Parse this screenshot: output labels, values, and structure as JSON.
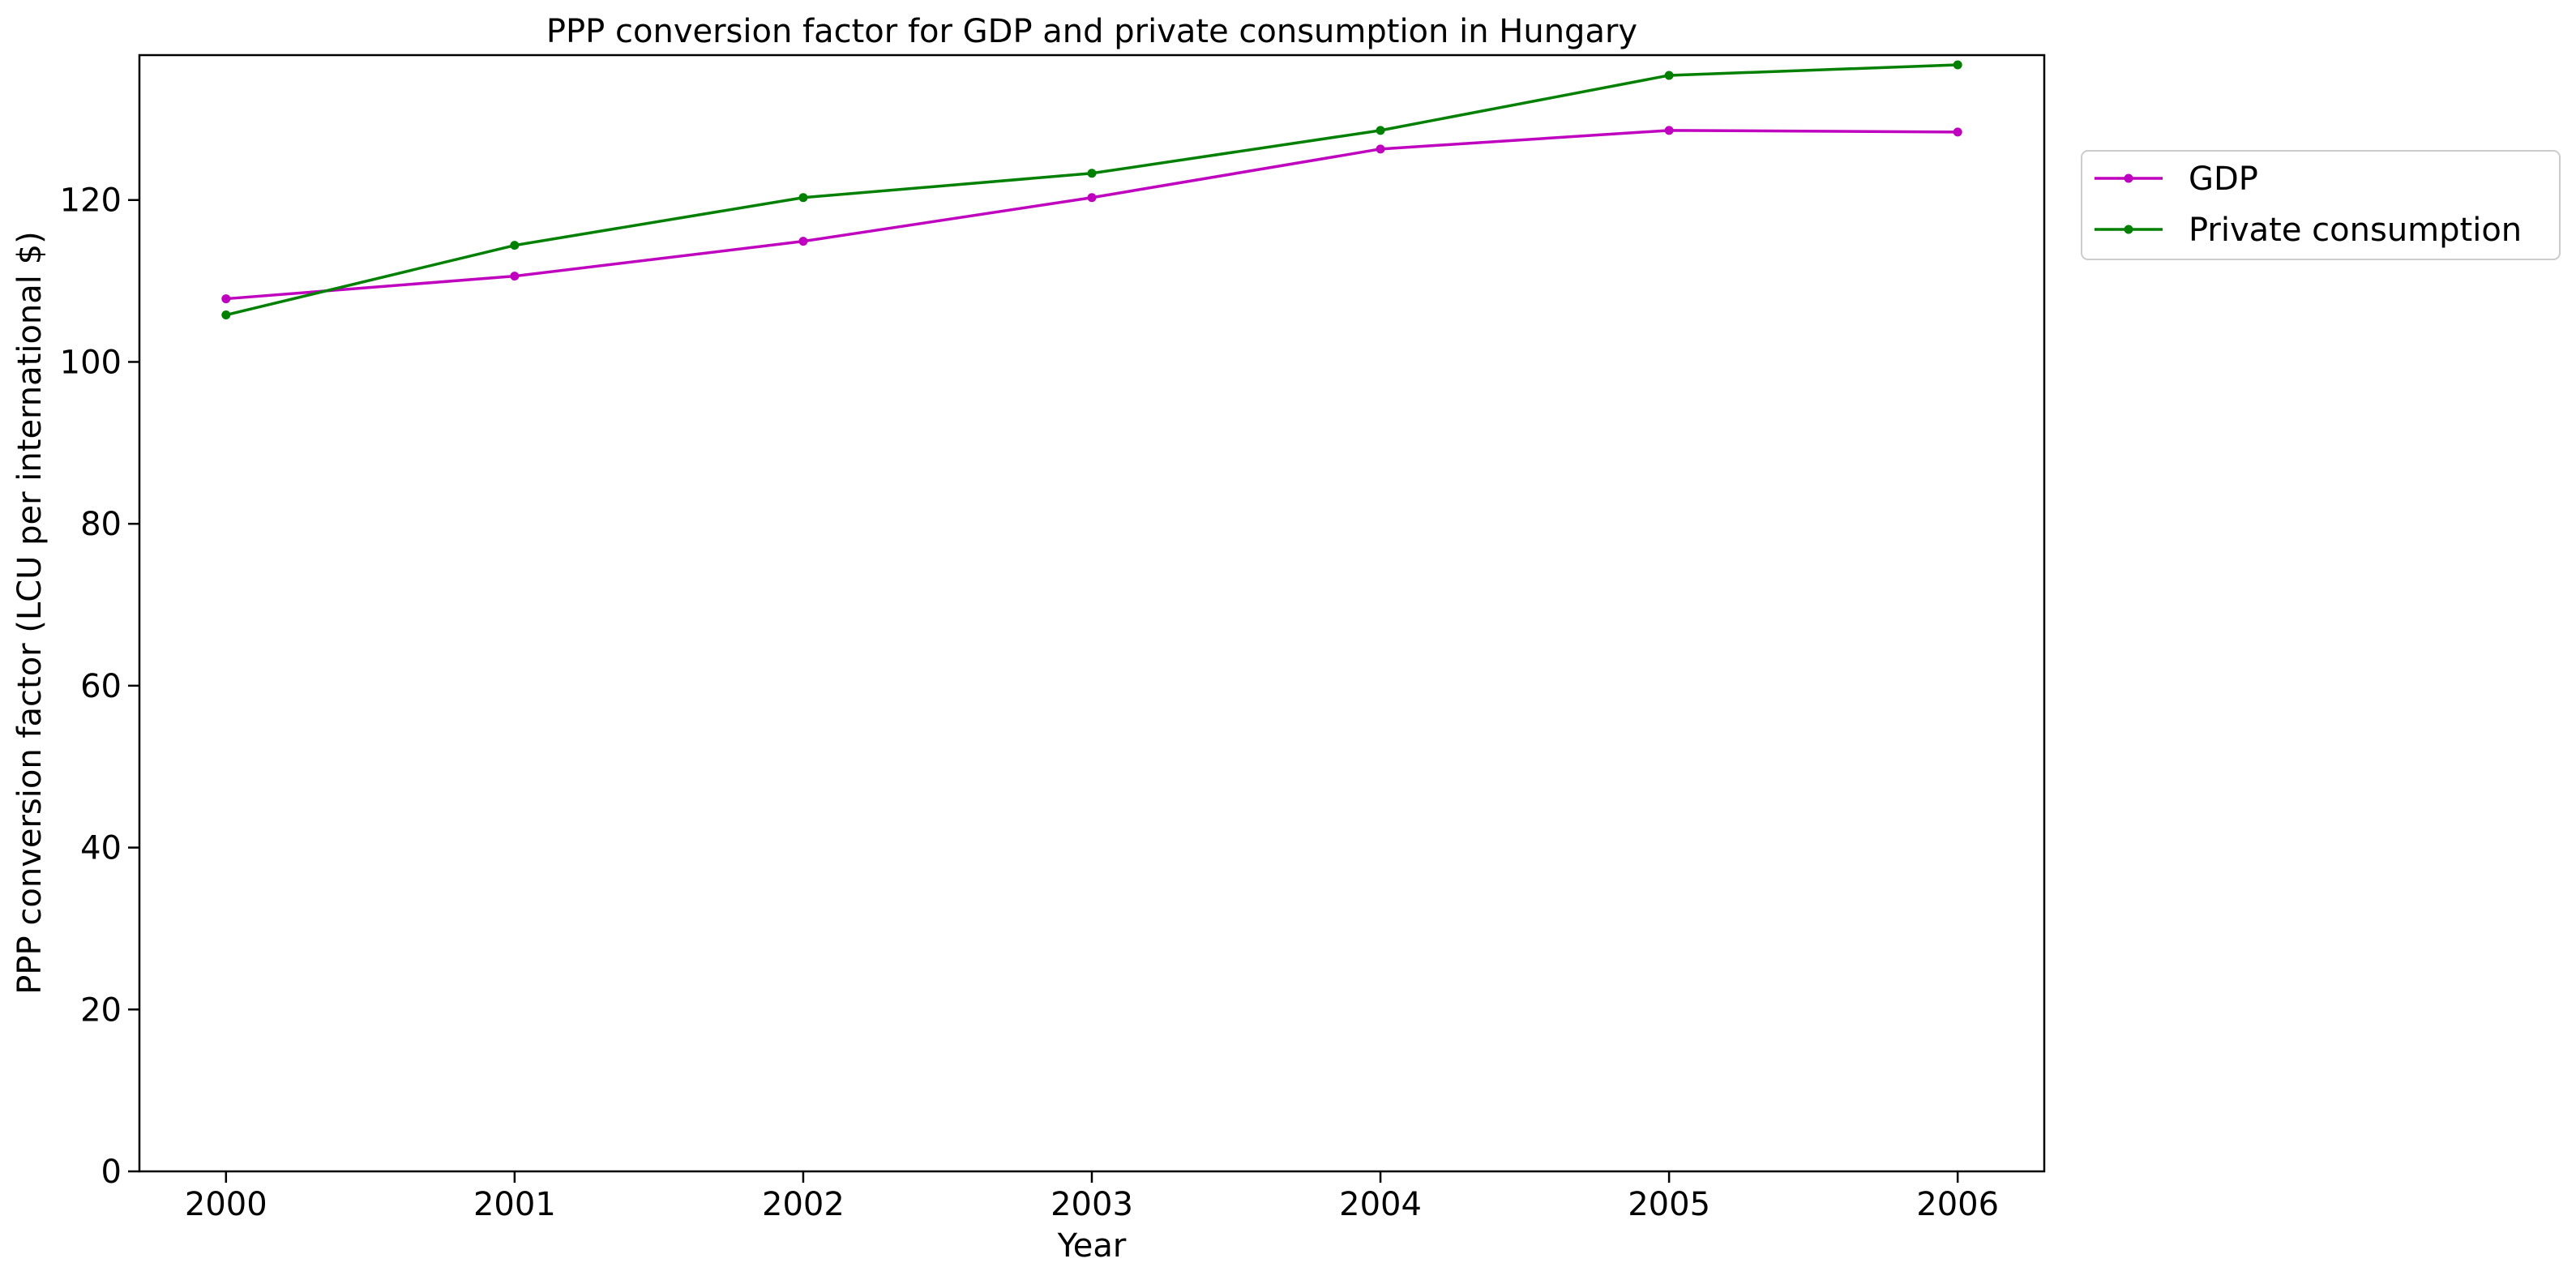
{
  "chart_data": {
    "type": "line",
    "title": "PPP conversion factor for GDP and private consumption in Hungary",
    "xlabel": "Year",
    "ylabel": "PPP conversion factor (LCU per international $)",
    "x": [
      "2000",
      "2001",
      "2002",
      "2003",
      "2004",
      "2005",
      "2006"
    ],
    "xlim": [
      1999.7,
      2006.3
    ],
    "ylim": [
      0,
      137.9
    ],
    "yticks": [
      0,
      20,
      40,
      60,
      80,
      100,
      120
    ],
    "grid": false,
    "legend_position": "outside-right-top",
    "series": [
      {
        "name": "GDP",
        "color": "#bf00bf",
        "values": [
          107.8,
          110.6,
          114.9,
          120.3,
          126.3,
          128.6,
          128.4
        ]
      },
      {
        "name": " Private consumption",
        "color": "#008000",
        "values": [
          105.8,
          114.4,
          120.3,
          123.3,
          128.6,
          135.4,
          136.7
        ]
      }
    ]
  }
}
